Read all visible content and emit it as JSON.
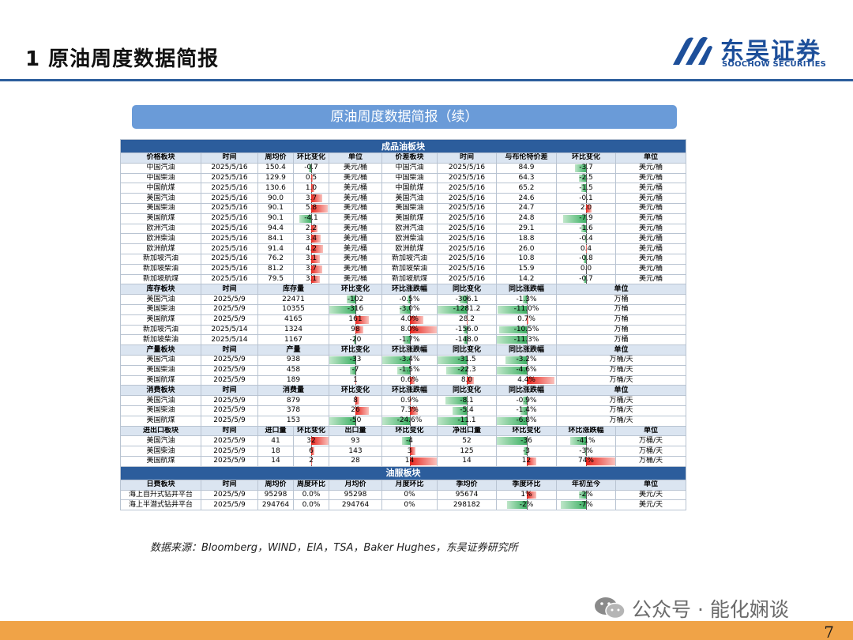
{
  "header": {
    "title": "1 原油周度数据简报",
    "logo_name": "东吴证券",
    "logo_en": "SOOCHOW SECURITIES"
  },
  "banner": "原油周度数据简报（续）",
  "colors": {
    "accent": "#2c5d9c",
    "up": "#e8231b",
    "down": "#3db064",
    "footer": "#f0a347",
    "banner": "#6a9bd8"
  },
  "sections": [
    {
      "title": "成品油板块",
      "blocks": [
        {
          "header": [
            "价格板块",
            "时间",
            "周均价",
            "环比变化",
            "单位",
            "价差板块",
            "时间",
            "与布伦特价差",
            "环比变化",
            "单位"
          ],
          "bars": {
            "3": 6,
            "8": 10
          },
          "rows": [
            [
              "中国汽油",
              "2025/5/16",
              "150.4",
              "-0.7",
              "美元/桶",
              "中国汽油",
              "2025/5/16",
              "84.9",
              "-3.7",
              "美元/桶"
            ],
            [
              "中国柴油",
              "2025/5/16",
              "129.9",
              "0.5",
              "美元/桶",
              "中国柴油",
              "2025/5/16",
              "64.3",
              "-2.5",
              "美元/桶"
            ],
            [
              "中国航煤",
              "2025/5/16",
              "130.6",
              "1.0",
              "美元/桶",
              "中国航煤",
              "2025/5/16",
              "65.2",
              "-1.5",
              "美元/桶"
            ],
            [
              "美国汽油",
              "2025/5/16",
              "90.0",
              "3.7",
              "美元/桶",
              "美国汽油",
              "2025/5/16",
              "24.6",
              "-0.1",
              "美元/桶"
            ],
            [
              "美国柴油",
              "2025/5/16",
              "90.1",
              "5.8",
              "美元/桶",
              "美国柴油",
              "2025/5/16",
              "24.7",
              "2.0",
              "美元/桶"
            ],
            [
              "美国航煤",
              "2025/5/16",
              "90.1",
              "-4.1",
              "美元/桶",
              "美国航煤",
              "2025/5/16",
              "24.8",
              "-7.9",
              "美元/桶"
            ],
            [
              "欧洲汽油",
              "2025/5/16",
              "94.4",
              "2.2",
              "美元/桶",
              "欧洲汽油",
              "2025/5/16",
              "29.1",
              "-1.6",
              "美元/桶"
            ],
            [
              "欧洲柴油",
              "2025/5/16",
              "84.1",
              "3.4",
              "美元/桶",
              "欧洲柴油",
              "2025/5/16",
              "18.8",
              "-0.4",
              "美元/桶"
            ],
            [
              "欧洲航煤",
              "2025/5/16",
              "91.4",
              "4.2",
              "美元/桶",
              "欧洲航煤",
              "2025/5/16",
              "26.0",
              "0.4",
              "美元/桶"
            ],
            [
              "新加坡汽油",
              "2025/5/16",
              "76.2",
              "3.1",
              "美元/桶",
              "新加坡汽油",
              "2025/5/16",
              "10.8",
              "-0.8",
              "美元/桶"
            ],
            [
              "新加坡柴油",
              "2025/5/16",
              "81.2",
              "3.7",
              "美元/桶",
              "新加坡柴油",
              "2025/5/16",
              "15.9",
              "0.0",
              "美元/桶"
            ],
            [
              "新加坡航煤",
              "2025/5/16",
              "79.5",
              "3.1",
              "美元/桶",
              "新加坡航煤",
              "2025/5/16",
              "14.2",
              "-0.7",
              "美元/桶"
            ]
          ]
        },
        {
          "header": [
            "库存板块",
            "时间",
            "库存量",
            "环比变化",
            "环比涨跌幅",
            "同比变化",
            "同比涨跌幅",
            "单位"
          ],
          "spans": [
            1,
            1,
            2,
            1,
            1,
            1,
            1,
            2
          ],
          "bars": {
            "3": 316,
            "4": 8.0,
            "5": 1281.2,
            "6": 11.3
          },
          "rows": [
            [
              "美国汽油",
              "2025/5/9",
              "22471",
              "-102",
              "-0.5%",
              "-306.1",
              "-1.3%",
              "万桶"
            ],
            [
              "美国柴油",
              "2025/5/9",
              "10355",
              "-316",
              "-3.0%",
              "-1281.2",
              "-11.0%",
              "万桶"
            ],
            [
              "美国航煤",
              "2025/5/9",
              "4165",
              "161",
              "4.0%",
              "28.2",
              "0.7%",
              "万桶"
            ],
            [
              "新加坡汽油",
              "2025/5/14",
              "1324",
              "98",
              "8.0%",
              "-156.0",
              "-10.5%",
              "万桶"
            ],
            [
              "新加坡柴油",
              "2025/5/14",
              "1167",
              "-20",
              "-1.7%",
              "-148.0",
              "-11.3%",
              "万桶"
            ]
          ]
        },
        {
          "header": [
            "产量板块",
            "时间",
            "产量",
            "环比变化",
            "环比涨跌幅",
            "同比变化",
            "同比涨跌幅",
            "单位"
          ],
          "spans": [
            1,
            1,
            2,
            1,
            1,
            1,
            1,
            2
          ],
          "bars": {
            "3": 33,
            "4": 3.4,
            "5": 31.5,
            "6": 4.6
          },
          "rows": [
            [
              "美国汽油",
              "2025/5/9",
              "938",
              "-33",
              "-3.4%",
              "-31.5",
              "-3.2%",
              "万桶/天"
            ],
            [
              "美国柴油",
              "2025/5/9",
              "458",
              "-7",
              "-1.5%",
              "-22.3",
              "-4.6%",
              "万桶/天"
            ],
            [
              "美国航煤",
              "2025/5/9",
              "189",
              "1",
              "0.6%",
              "8.0",
              "4.4%",
              "万桶/天"
            ]
          ]
        },
        {
          "header": [
            "消费板块",
            "时间",
            "消费量",
            "环比变化",
            "环比涨跌幅",
            "同比变化",
            "同比涨跌幅",
            "单位"
          ],
          "spans": [
            1,
            1,
            2,
            1,
            1,
            1,
            1,
            2
          ],
          "bars": {
            "3": 50,
            "4": 24.6,
            "5": 11.1,
            "6": 6.8
          },
          "rows": [
            [
              "美国汽油",
              "2025/5/9",
              "879",
              "8",
              "0.9%",
              "-8.1",
              "-0.9%",
              "万桶/天"
            ],
            [
              "美国柴油",
              "2025/5/9",
              "378",
              "26",
              "7.3%",
              "-5.4",
              "-1.4%",
              "万桶/天"
            ],
            [
              "美国航煤",
              "2025/5/9",
              "153",
              "-50",
              "-24.6%",
              "-11.1",
              "-6.8%",
              "万桶/天"
            ]
          ]
        },
        {
          "header": [
            "进出口板块",
            "时间",
            "进口量",
            "环比变化",
            "出口量",
            "环比变化",
            "净出口量",
            "环比变化",
            "环比涨跌幅",
            "单位"
          ],
          "bars": {
            "3": 32,
            "5": 14,
            "7": 36,
            "8": 74
          },
          "rows": [
            [
              "美国汽油",
              "2025/5/9",
              "41",
              "32",
              "93",
              "-4",
              "52",
              "-36",
              "-41%",
              "万桶/天"
            ],
            [
              "美国柴油",
              "2025/5/9",
              "18",
              "6",
              "143",
              "3",
              "125",
              "-3",
              "-3%",
              "万桶/天"
            ],
            [
              "美国航煤",
              "2025/5/9",
              "14",
              "2",
              "28",
              "14",
              "14",
              "12",
              "74%",
              "万桶/天"
            ]
          ]
        }
      ]
    },
    {
      "title": "油服板块",
      "blocks": [
        {
          "header": [
            "日费板块",
            "时间",
            "周均价",
            "周度环比",
            "月均价",
            "月度环比",
            "季均价",
            "季度环比",
            "年初至今",
            "单位"
          ],
          "bars": {
            "7": 3,
            "8": 8
          },
          "rows": [
            [
              "海上自升式钻井平台",
              "2025/5/9",
              "95298",
              "0.0%",
              "95298",
              "0%",
              "95674",
              "1%",
              "-2%",
              "美元/天"
            ],
            [
              "海上半潜式钻井平台",
              "2025/5/9",
              "294764",
              "0.0%",
              "294764",
              "0%",
              "298182",
              "-2%",
              "-7%",
              "美元/天"
            ]
          ]
        }
      ]
    }
  ],
  "source": "数据来源：Bloomberg，WIND，EIA，TSA，Baker Hughes，东吴证券研究所",
  "watermark": "公众号 · 能化娴谈",
  "page_number": "7"
}
